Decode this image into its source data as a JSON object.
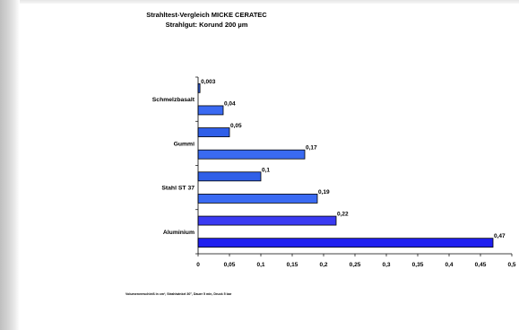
{
  "chart_data": {
    "type": "bar",
    "orientation": "horizontal",
    "title": "Strahltest-Vergleich MICKE CERATEC",
    "subtitle": "Strahlgut: Korund 200 µm",
    "category_labels": [
      "Aluminium",
      "Stahl ST 37",
      "Gummi",
      "Schmelzbasalt"
    ],
    "bars": [
      {
        "value": 0.47,
        "label": "0,47",
        "color": "#1f1ff0"
      },
      {
        "value": 0.22,
        "label": "0,22",
        "color": "#3a3af2"
      },
      {
        "value": 0.19,
        "label": "0,19",
        "color": "#3a6af2"
      },
      {
        "value": 0.1,
        "label": "0,1",
        "color": "#2f5fe8"
      },
      {
        "value": 0.17,
        "label": "0,17",
        "color": "#3a6af2"
      },
      {
        "value": 0.05,
        "label": "0,05",
        "color": "#2f5fe8"
      },
      {
        "value": 0.04,
        "label": "0,04",
        "color": "#3a6af2"
      },
      {
        "value": 0.003,
        "label": "0,003",
        "color": "#2f5fe8"
      }
    ],
    "x_ticks": [
      "0",
      "0,05",
      "0,1",
      "0,15",
      "0,2",
      "0,25",
      "0,3",
      "0,35",
      "0,4",
      "0,45",
      "0,5"
    ],
    "xlim": [
      0,
      0.5
    ],
    "grid": false,
    "footnote": "Volumenverschleiß in cm³, Strahlwinkel 30°, Dauer 5 min, Druck 5 bar"
  }
}
